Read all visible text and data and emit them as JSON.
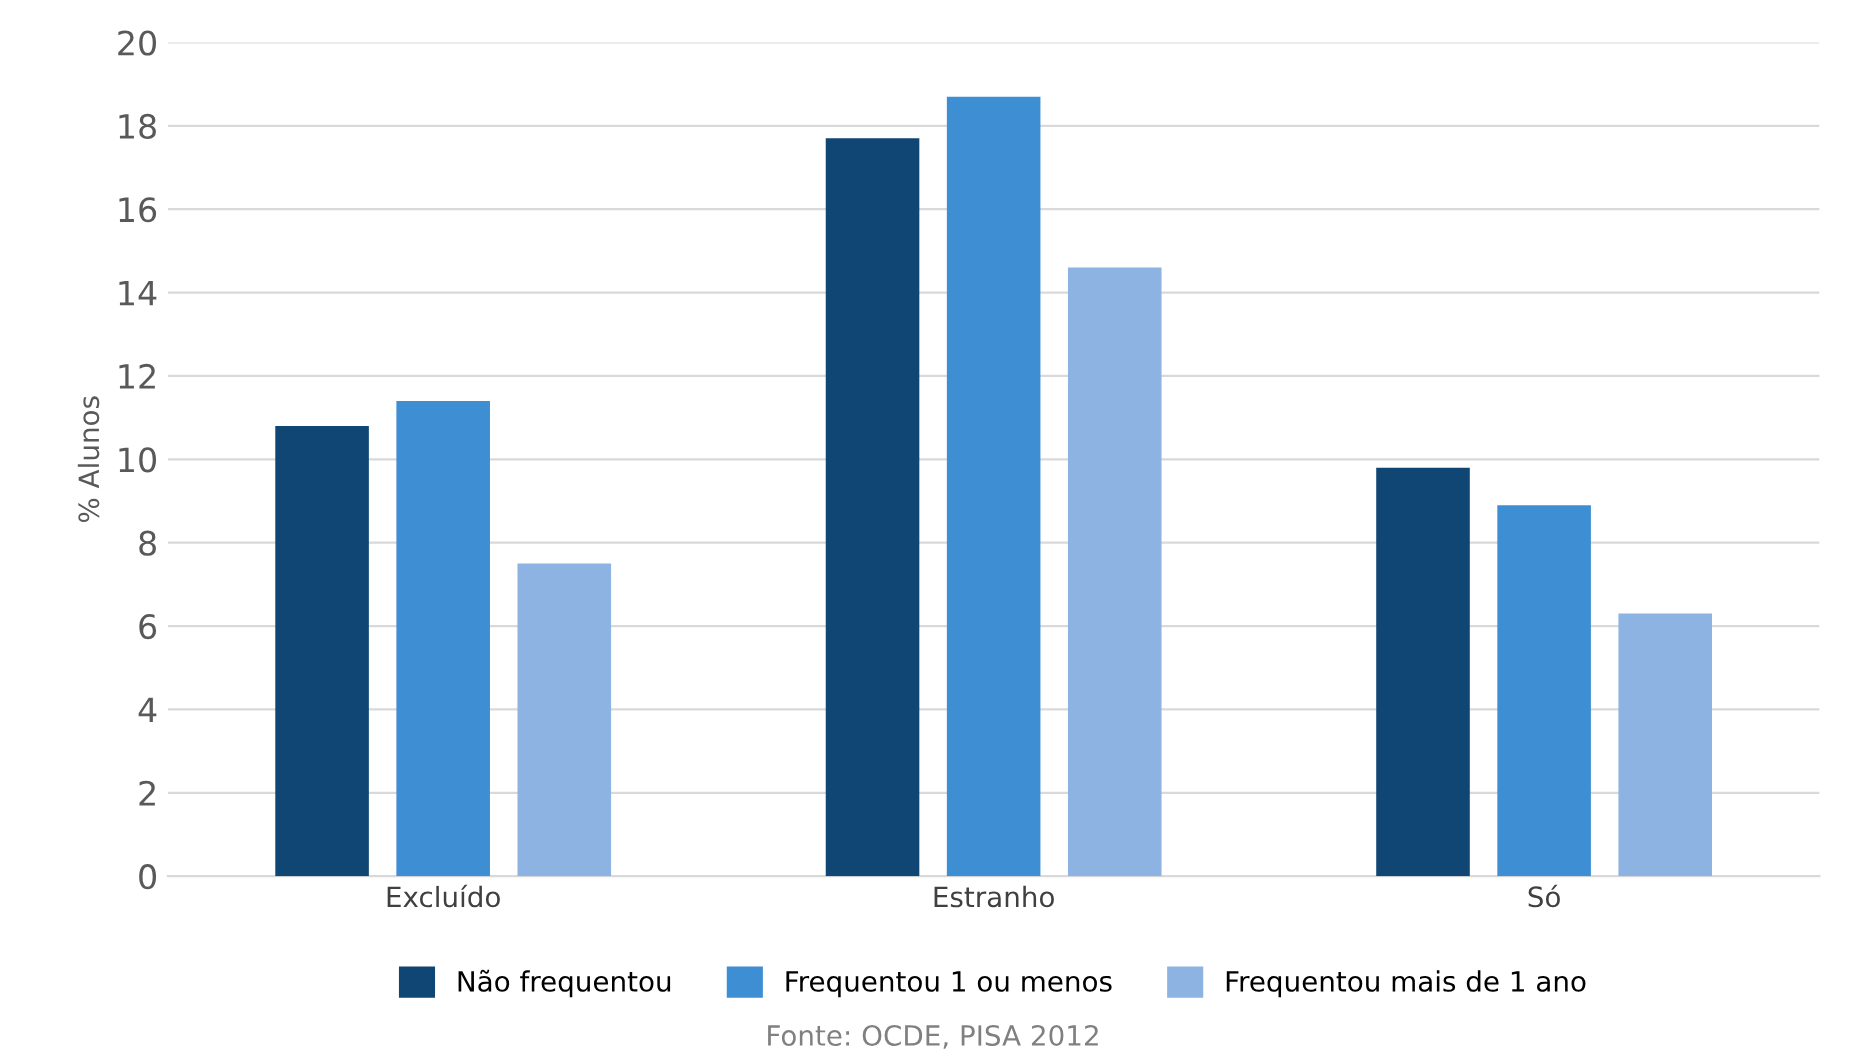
{
  "chart_data": {
    "type": "bar",
    "ylabel": "% Alunos",
    "categories": [
      "Excluído",
      "Estranho",
      "Só"
    ],
    "series": [
      {
        "name": "Não frequentou",
        "color": "#0f4673",
        "values": [
          10.8,
          17.7,
          9.8
        ]
      },
      {
        "name": "Frequentou 1 ou menos",
        "color": "#3e8ed3",
        "values": [
          11.4,
          18.7,
          8.9
        ]
      },
      {
        "name": "Frequentou mais de 1 ano",
        "color": "#8db3e2",
        "values": [
          7.5,
          14.6,
          6.3
        ]
      }
    ],
    "ylim": [
      0,
      20
    ],
    "yticks": [
      0,
      2,
      4,
      6,
      8,
      10,
      12,
      14,
      16,
      18,
      20
    ],
    "grid": "y",
    "legend": "bottom",
    "annotations": [
      "Fonte: OCDE, PISA 2012"
    ]
  }
}
